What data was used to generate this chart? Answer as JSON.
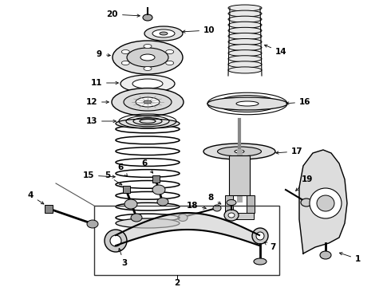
{
  "bg_color": "#ffffff",
  "line_color": "#000000",
  "fig_width": 4.9,
  "fig_height": 3.6,
  "dpi": 100,
  "label_fontsize": 7.5
}
